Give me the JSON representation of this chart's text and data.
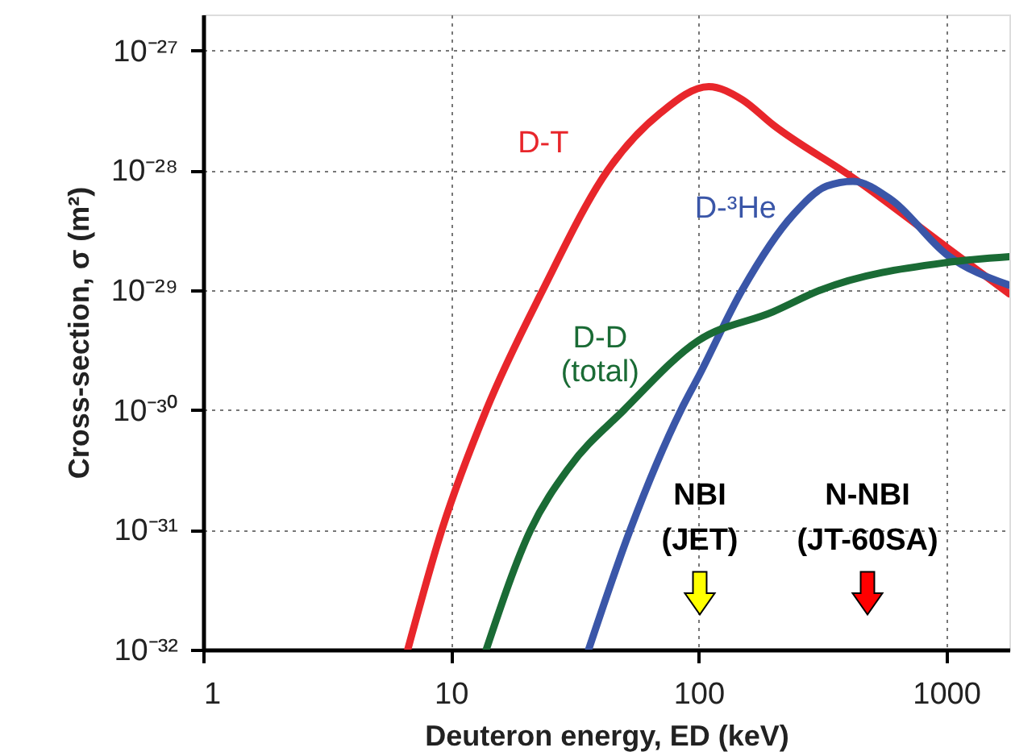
{
  "chart_data": {
    "type": "line",
    "xlabel": "Deuteron energy, ED (keV)",
    "ylabel": "Cross-section, σ (m²)",
    "log": "xy",
    "grid": true,
    "legend": false,
    "line_style": "solid",
    "marker": "none",
    "xlim": [
      1,
      1800
    ],
    "xticks": [
      1,
      10,
      100,
      1000
    ],
    "ylim": [
      1e-32,
      2e-27
    ],
    "yticks": [
      {
        "value": 1e-32,
        "label": "10⁻³²"
      },
      {
        "value": 1e-31,
        "label": "10⁻³¹"
      },
      {
        "value": 1e-30,
        "label": "10⁻³⁰"
      },
      {
        "value": 1e-29,
        "label": "10⁻²⁹"
      },
      {
        "value": 1e-28,
        "label": "10⁻²⁸"
      },
      {
        "value": 1e-27,
        "label": "10⁻²⁷"
      }
    ],
    "series": [
      {
        "name": "D-T",
        "color": "#e8262b",
        "x": [
          6.7,
          9.2,
          13.9,
          23.5,
          43,
          70,
          110,
          150,
          200,
          420,
          1000,
          1800
        ],
        "values": [
          1e-32,
          1e-31,
          1e-30,
          1e-29,
          1e-28,
          3e-28,
          5e-28,
          3.9e-28,
          2.4e-28,
          8.7e-29,
          2.3e-29,
          9.3e-30
        ]
      },
      {
        "name": "D-³He",
        "color": "#3a56a8",
        "x": [
          36,
          53,
          85,
          100,
          150,
          242,
          330,
          420,
          600,
          1000,
          1800
        ],
        "values": [
          1e-32,
          1e-31,
          1e-30,
          1.9e-30,
          1e-29,
          4.3e-29,
          7.4e-29,
          8.1e-29,
          5.7e-29,
          2e-29,
          1.1e-29
        ]
      },
      {
        "name": "D-D\n(total)",
        "color": "#1a6b35",
        "x": [
          13.9,
          21,
          30,
          50,
          100,
          200,
          310,
          1000,
          1800
        ],
        "values": [
          1e-32,
          1e-31,
          3.3e-31,
          1e-30,
          3.8e-30,
          6.6e-30,
          1e-29,
          1.7e-29,
          1.9e-29
        ]
      }
    ],
    "annotations": [
      "NBI\n(JET)",
      "N-NBI\n(JT-60SA)"
    ]
  }
}
